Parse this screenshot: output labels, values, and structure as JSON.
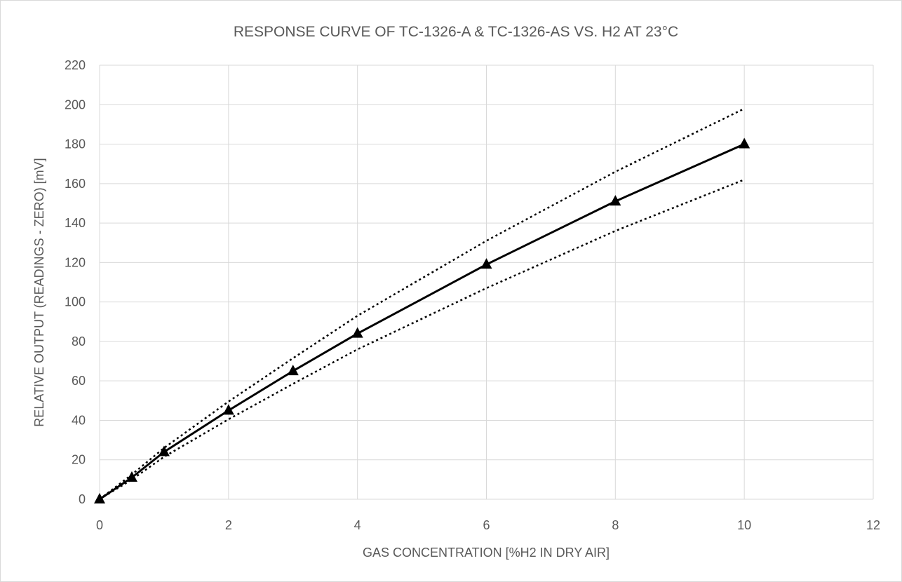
{
  "chart_data": {
    "type": "line",
    "title": "RESPONSE CURVE OF TC-1326-A & TC-1326-AS VS. H2 AT 23°C",
    "xlabel": "GAS CONCENTRATION [%H2 IN DRY AIR]",
    "ylabel": "RELATIVE OUTPUT (READINGS - ZERO) [mV]",
    "xlim": [
      0,
      12
    ],
    "ylim": [
      0,
      220
    ],
    "xticks": [
      0,
      2,
      4,
      6,
      8,
      10,
      12
    ],
    "yticks": [
      0,
      20,
      40,
      60,
      80,
      100,
      120,
      140,
      160,
      180,
      200,
      220
    ],
    "grid": true,
    "legend": "none",
    "series": [
      {
        "style": "solid-triangle-markers",
        "color": "#000000",
        "x": [
          0,
          0.5,
          1,
          2,
          3,
          4,
          6,
          8,
          10
        ],
        "y": [
          0,
          11,
          24,
          45,
          65,
          84,
          119,
          151,
          180
        ]
      },
      {
        "style": "dotted-upper-bound",
        "color": "#000000",
        "x": [
          0,
          0.5,
          1,
          2,
          3,
          4,
          6,
          8,
          10
        ],
        "y": [
          0,
          12.5,
          26,
          49.5,
          71.5,
          93,
          131,
          166,
          198
        ]
      },
      {
        "style": "dotted-lower-bound",
        "color": "#000000",
        "x": [
          0,
          0.5,
          1,
          2,
          3,
          4,
          6,
          8,
          10
        ],
        "y": [
          0,
          10,
          21.5,
          40.5,
          58.5,
          76,
          107,
          136,
          162
        ]
      }
    ]
  }
}
